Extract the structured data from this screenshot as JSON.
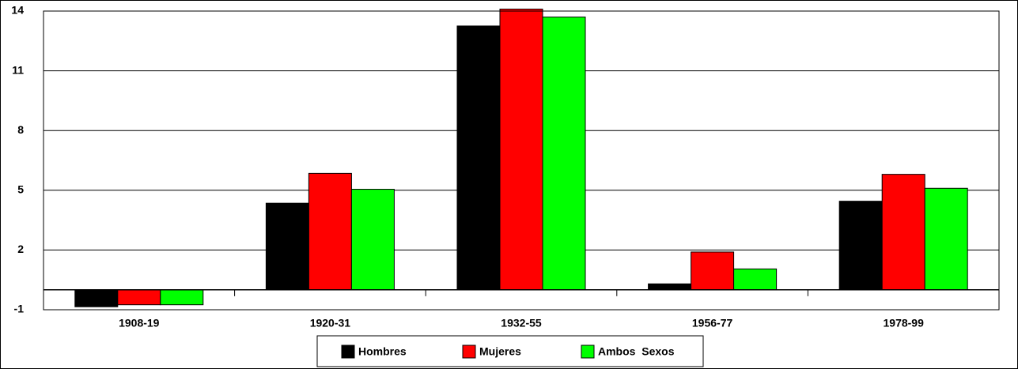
{
  "chart_data": {
    "type": "bar",
    "categories": [
      "1908-19",
      "1920-31",
      "1932-55",
      "1956-77",
      "1978-99"
    ],
    "series": [
      {
        "name": "Hombres",
        "color": "#000000",
        "values": [
          -0.85,
          4.35,
          13.25,
          0.3,
          4.45
        ]
      },
      {
        "name": "Mujeres",
        "color": "#ff0000",
        "values": [
          -0.75,
          5.85,
          14.1,
          1.9,
          5.8
        ]
      },
      {
        "name": "Ambos  Sexos",
        "color": "#00ff00",
        "values": [
          -0.75,
          5.05,
          13.7,
          1.05,
          5.1
        ]
      }
    ],
    "ylim": [
      -1,
      14
    ],
    "yticks": [
      -1,
      2,
      5,
      8,
      11,
      14
    ],
    "grid": true,
    "legend": "bottom"
  }
}
